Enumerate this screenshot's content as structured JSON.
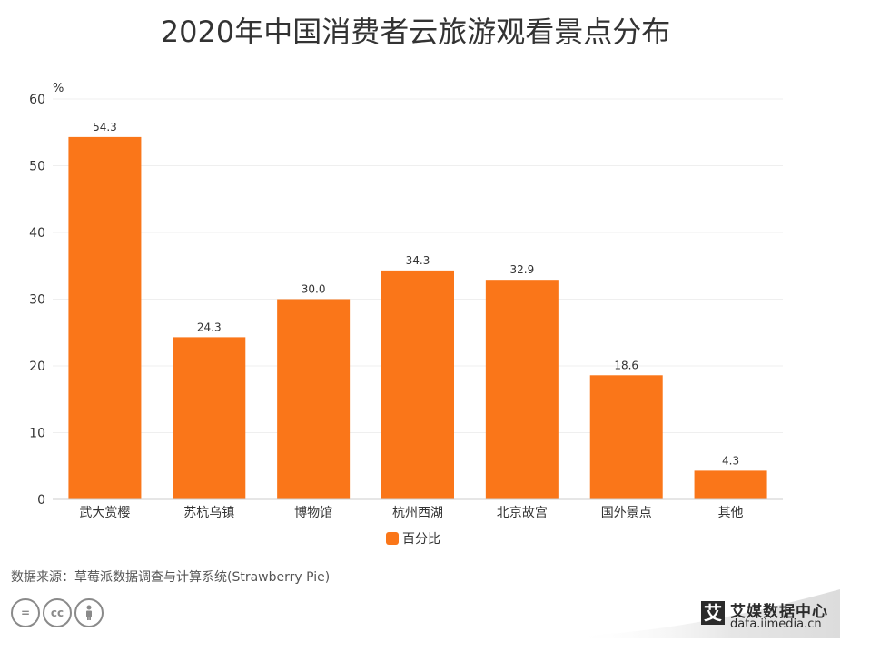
{
  "title": "2020年中国消费者云旅游观看景点分布",
  "source": "数据来源：草莓派数据调查与计算系统(Strawberry Pie)",
  "logo": {
    "mark": "艾",
    "name": "艾媒数据中心",
    "url": "data.iimedia.cn"
  },
  "license_badges": [
    "=",
    "cc",
    "person-icon"
  ],
  "colors": {
    "bar": "#FA7619",
    "grid": "#EFEFEF",
    "axis": "#CCCCCC",
    "text": "#333333"
  },
  "chart_data": {
    "type": "bar",
    "title": "2020年中国消费者云旅游观看景点分布",
    "ylabel": "%",
    "xlabel": "",
    "ylim": [
      0,
      60
    ],
    "yticks": [
      0,
      10,
      20,
      30,
      40,
      50,
      60
    ],
    "categories": [
      "武大赏樱",
      "苏杭乌镇",
      "博物馆",
      "杭州西湖",
      "北京故宫",
      "国外景点",
      "其他"
    ],
    "series": [
      {
        "name": "百分比",
        "values": [
          54.3,
          24.3,
          30.0,
          34.3,
          32.9,
          18.6,
          4.3
        ],
        "labels": [
          "54.3",
          "24.3",
          "30.0",
          "34.3",
          "32.9",
          "18.6",
          "4.3"
        ]
      }
    ],
    "legend": "bottom-center",
    "grid": true
  }
}
